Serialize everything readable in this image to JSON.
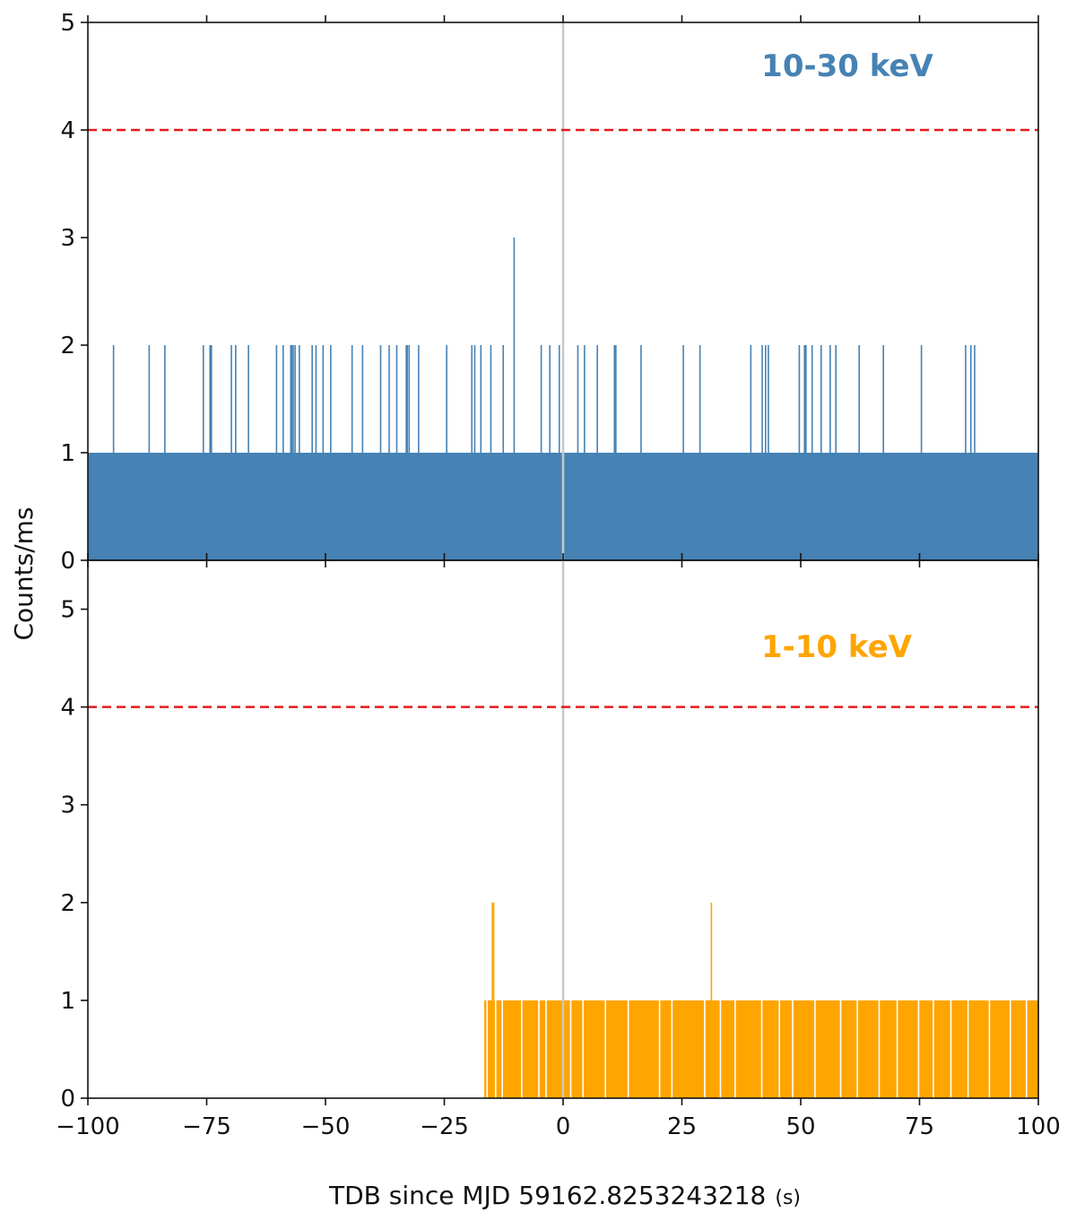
{
  "figure": {
    "ylabel": "Counts/ms",
    "xlabel": "TDB since MJD 59162.8253243218",
    "xlabel_unit": "(s)"
  },
  "chart_data": [
    {
      "type": "bar",
      "panel": "top",
      "annotation": "10-30 keV",
      "color": "#4682b4",
      "xlim": [
        -100,
        100
      ],
      "ylim": [
        0,
        5
      ],
      "yticks": [
        "0",
        "1",
        "2",
        "3",
        "4",
        "5"
      ],
      "xticks": [],
      "baseline": {
        "x_start": -100,
        "x_end": 100,
        "value": 1
      },
      "spikes": [
        {
          "x": -94.6,
          "value": 2
        },
        {
          "x": -87.1,
          "value": 2
        },
        {
          "x": -83.8,
          "value": 2
        },
        {
          "x": -75.7,
          "value": 2
        },
        {
          "x": -74.3,
          "value": 2
        },
        {
          "x": -74.0,
          "value": 2
        },
        {
          "x": -69.8,
          "value": 2
        },
        {
          "x": -68.9,
          "value": 2
        },
        {
          "x": -66.2,
          "value": 2
        },
        {
          "x": -60.3,
          "value": 2
        },
        {
          "x": -58.9,
          "value": 2
        },
        {
          "x": -57.3,
          "value": 2
        },
        {
          "x": -57.1,
          "value": 2
        },
        {
          "x": -56.8,
          "value": 2
        },
        {
          "x": -56.4,
          "value": 2
        },
        {
          "x": -55.5,
          "value": 2
        },
        {
          "x": -52.8,
          "value": 2
        },
        {
          "x": -52.0,
          "value": 2
        },
        {
          "x": -50.5,
          "value": 2
        },
        {
          "x": -48.9,
          "value": 2
        },
        {
          "x": -44.4,
          "value": 2
        },
        {
          "x": -42.2,
          "value": 2
        },
        {
          "x": -38.4,
          "value": 2
        },
        {
          "x": -36.6,
          "value": 2
        },
        {
          "x": -35.0,
          "value": 2
        },
        {
          "x": -33.0,
          "value": 2
        },
        {
          "x": -32.8,
          "value": 2
        },
        {
          "x": -32.4,
          "value": 2
        },
        {
          "x": -30.4,
          "value": 2
        },
        {
          "x": -24.5,
          "value": 2
        },
        {
          "x": -19.2,
          "value": 2
        },
        {
          "x": -18.6,
          "value": 2
        },
        {
          "x": -17.3,
          "value": 2
        },
        {
          "x": -15.2,
          "value": 2
        },
        {
          "x": -12.6,
          "value": 2
        },
        {
          "x": -10.3,
          "value": 3
        },
        {
          "x": -4.6,
          "value": 2
        },
        {
          "x": -2.8,
          "value": 2
        },
        {
          "x": -0.8,
          "value": 2
        },
        {
          "x": 3.1,
          "value": 2
        },
        {
          "x": 4.5,
          "value": 2
        },
        {
          "x": 7.2,
          "value": 2
        },
        {
          "x": 10.8,
          "value": 2
        },
        {
          "x": 11.1,
          "value": 2
        },
        {
          "x": 16.4,
          "value": 2
        },
        {
          "x": 25.3,
          "value": 2
        },
        {
          "x": 28.8,
          "value": 2
        },
        {
          "x": 39.5,
          "value": 2
        },
        {
          "x": 41.9,
          "value": 2
        },
        {
          "x": 42.6,
          "value": 2
        },
        {
          "x": 43.2,
          "value": 2
        },
        {
          "x": 49.7,
          "value": 2
        },
        {
          "x": 50.8,
          "value": 2
        },
        {
          "x": 51.1,
          "value": 2
        },
        {
          "x": 52.4,
          "value": 2
        },
        {
          "x": 54.3,
          "value": 2
        },
        {
          "x": 56.2,
          "value": 2
        },
        {
          "x": 57.4,
          "value": 2
        },
        {
          "x": 62.3,
          "value": 2
        },
        {
          "x": 67.4,
          "value": 2
        },
        {
          "x": 75.4,
          "value": 2
        },
        {
          "x": 84.7,
          "value": 2
        },
        {
          "x": 85.8,
          "value": 2
        },
        {
          "x": 86.6,
          "value": 2
        }
      ],
      "threshold_line": {
        "value": 4,
        "style": "dashed",
        "color": "#e41a1c"
      },
      "marker_line": {
        "x": 0,
        "color": "#c8c8c8"
      },
      "grid": false
    },
    {
      "type": "bar",
      "panel": "bottom",
      "annotation": "1-10 keV",
      "color": "#ffa500",
      "xlim": [
        -100,
        100
      ],
      "ylim": [
        0,
        5.5
      ],
      "yticks": [
        "0",
        "1",
        "2",
        "3",
        "4",
        "5"
      ],
      "xticks": [
        "−100",
        "−75",
        "−50",
        "−25",
        "0",
        "25",
        "50",
        "75",
        "100"
      ],
      "baseline": {
        "x_start": -16.6,
        "x_end": 100,
        "value": 1
      },
      "gaps": [
        -16.0,
        -14.2,
        -12.8,
        -8.7,
        -5.1,
        -3.6,
        1.6,
        4.2,
        8.9,
        13.7,
        20.3,
        22.9,
        29.8,
        33.1,
        36.2,
        41.8,
        45.5,
        48.3,
        53.0,
        58.4,
        61.9,
        66.5,
        70.3,
        74.8,
        77.9,
        81.6,
        85.2,
        89.7,
        94.1,
        97.5
      ],
      "spikes": [
        {
          "x": -14.9,
          "value": 2
        },
        {
          "x": -14.6,
          "value": 2
        },
        {
          "x": 31.2,
          "value": 2
        }
      ],
      "threshold_line": {
        "value": 4,
        "style": "dashed",
        "color": "#e41a1c"
      },
      "marker_line": {
        "x": 0,
        "color": "#c8c8c8"
      },
      "grid": false
    }
  ]
}
